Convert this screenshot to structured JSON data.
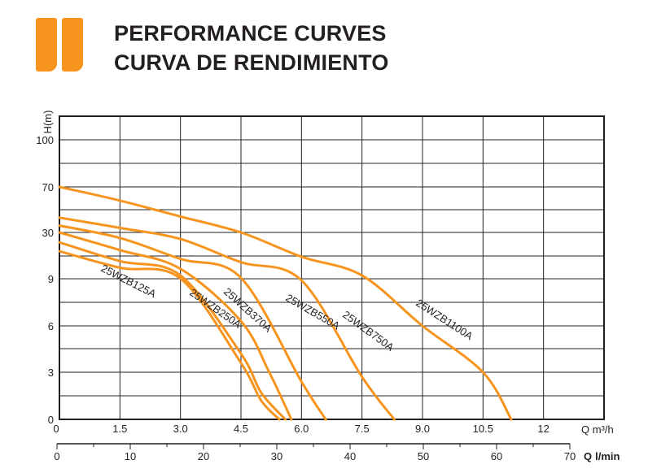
{
  "header": {
    "title_line1": "PERFORMANCE CURVES",
    "title_line2": "CURVA DE RENDIMIENTO"
  },
  "colors": {
    "accent": "#f7941d",
    "curve": "#f7941d",
    "grid": "#231f20",
    "text": "#231f20"
  },
  "chart_data": {
    "type": "line",
    "title": "",
    "ylabel": "H(m)",
    "xlabel": "Q m³/h",
    "xlabel_secondary_unit": "l/min",
    "xlabel_secondary_prefix": "Q",
    "x_ticks": [
      "0",
      "1.5",
      "3.0",
      "4.5",
      "6.0",
      "7.5",
      "9.0",
      "10.5",
      "12"
    ],
    "x_tick_values": [
      0,
      1.5,
      3.0,
      4.5,
      6.0,
      7.5,
      9.0,
      10.5,
      12
    ],
    "x2_ticks": [
      "0",
      "10",
      "20",
      "30",
      "40",
      "50",
      "60",
      "70"
    ],
    "x2_tick_values": [
      0,
      10,
      20,
      30,
      40,
      50,
      60,
      70
    ],
    "y_ticks": [
      "0",
      "3",
      "6",
      "9",
      "30",
      "70",
      "100"
    ],
    "xlim": [
      0,
      13.5
    ],
    "grid": true,
    "series": [
      {
        "name": "25WZB125A",
        "x": [
          0,
          1.5,
          3.0,
          4.5,
          5.0,
          5.45
        ],
        "y": [
          21.5,
          14,
          9.1,
          3.6,
          1.2,
          0
        ]
      },
      {
        "name": "25WZB250A",
        "x": [
          0,
          1.5,
          3.0,
          4.5,
          5.0,
          5.6
        ],
        "y": [
          25.5,
          17,
          10.5,
          4.2,
          1.7,
          0
        ]
      },
      {
        "name": "25WZB370A",
        "x": [
          0,
          1.5,
          3.0,
          4.5,
          5.2,
          5.75
        ],
        "y": [
          30,
          22,
          13.5,
          6.3,
          3.0,
          0
        ]
      },
      {
        "name": "25WZB550A",
        "x": [
          0,
          1.5,
          3.0,
          4.5,
          6.0,
          6.6
        ],
        "y": [
          36,
          27.5,
          18,
          9.4,
          2.4,
          0
        ]
      },
      {
        "name": "25WZB750A",
        "x": [
          0,
          1.5,
          3.0,
          4.5,
          6.0,
          7.5,
          8.3
        ],
        "y": [
          43,
          34,
          27,
          16.5,
          8.9,
          2.7,
          0
        ]
      },
      {
        "name": "25WZB1100A",
        "x": [
          0,
          1.5,
          3.0,
          4.5,
          6.0,
          7.5,
          9.0,
          10.5,
          11.2
        ],
        "y": [
          70,
          58,
          44,
          30,
          19,
          10.5,
          6.0,
          3.0,
          0
        ]
      }
    ]
  }
}
